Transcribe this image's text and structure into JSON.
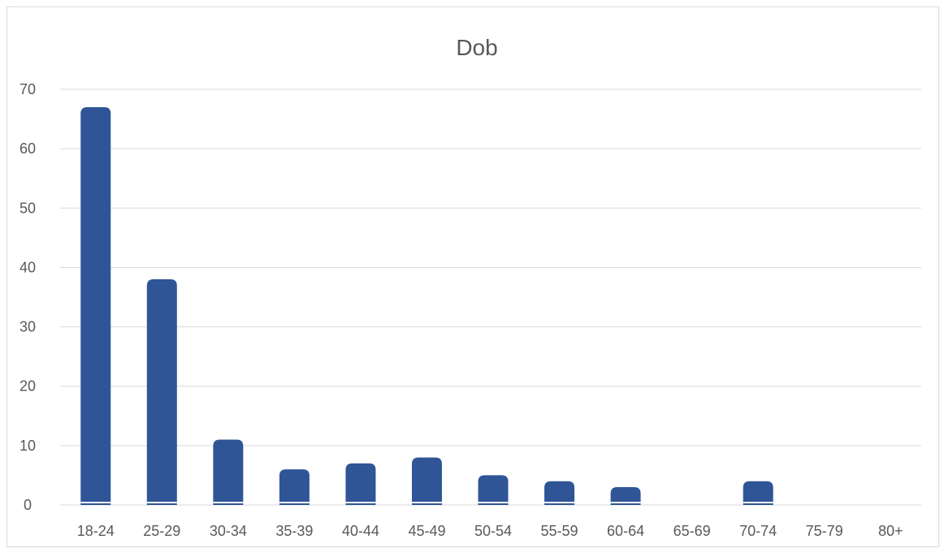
{
  "chart_data": {
    "type": "bar",
    "title": "Dob",
    "xlabel": "",
    "ylabel": "",
    "categories": [
      "18-24",
      "25-29",
      "30-34",
      "35-39",
      "40-44",
      "45-49",
      "50-54",
      "55-59",
      "60-64",
      "65-69",
      "70-74",
      "75-79",
      "80+"
    ],
    "values": [
      67,
      38,
      11,
      6,
      7,
      8,
      5,
      4,
      3,
      0,
      4,
      0,
      0
    ],
    "ylim": [
      0,
      70
    ],
    "yticks": [
      "0",
      "10",
      "20",
      "30",
      "40",
      "50",
      "60",
      "70"
    ],
    "grid": true,
    "legend": "none",
    "bar_color": "#2f5597",
    "grid_color": "#d9d9d9"
  }
}
